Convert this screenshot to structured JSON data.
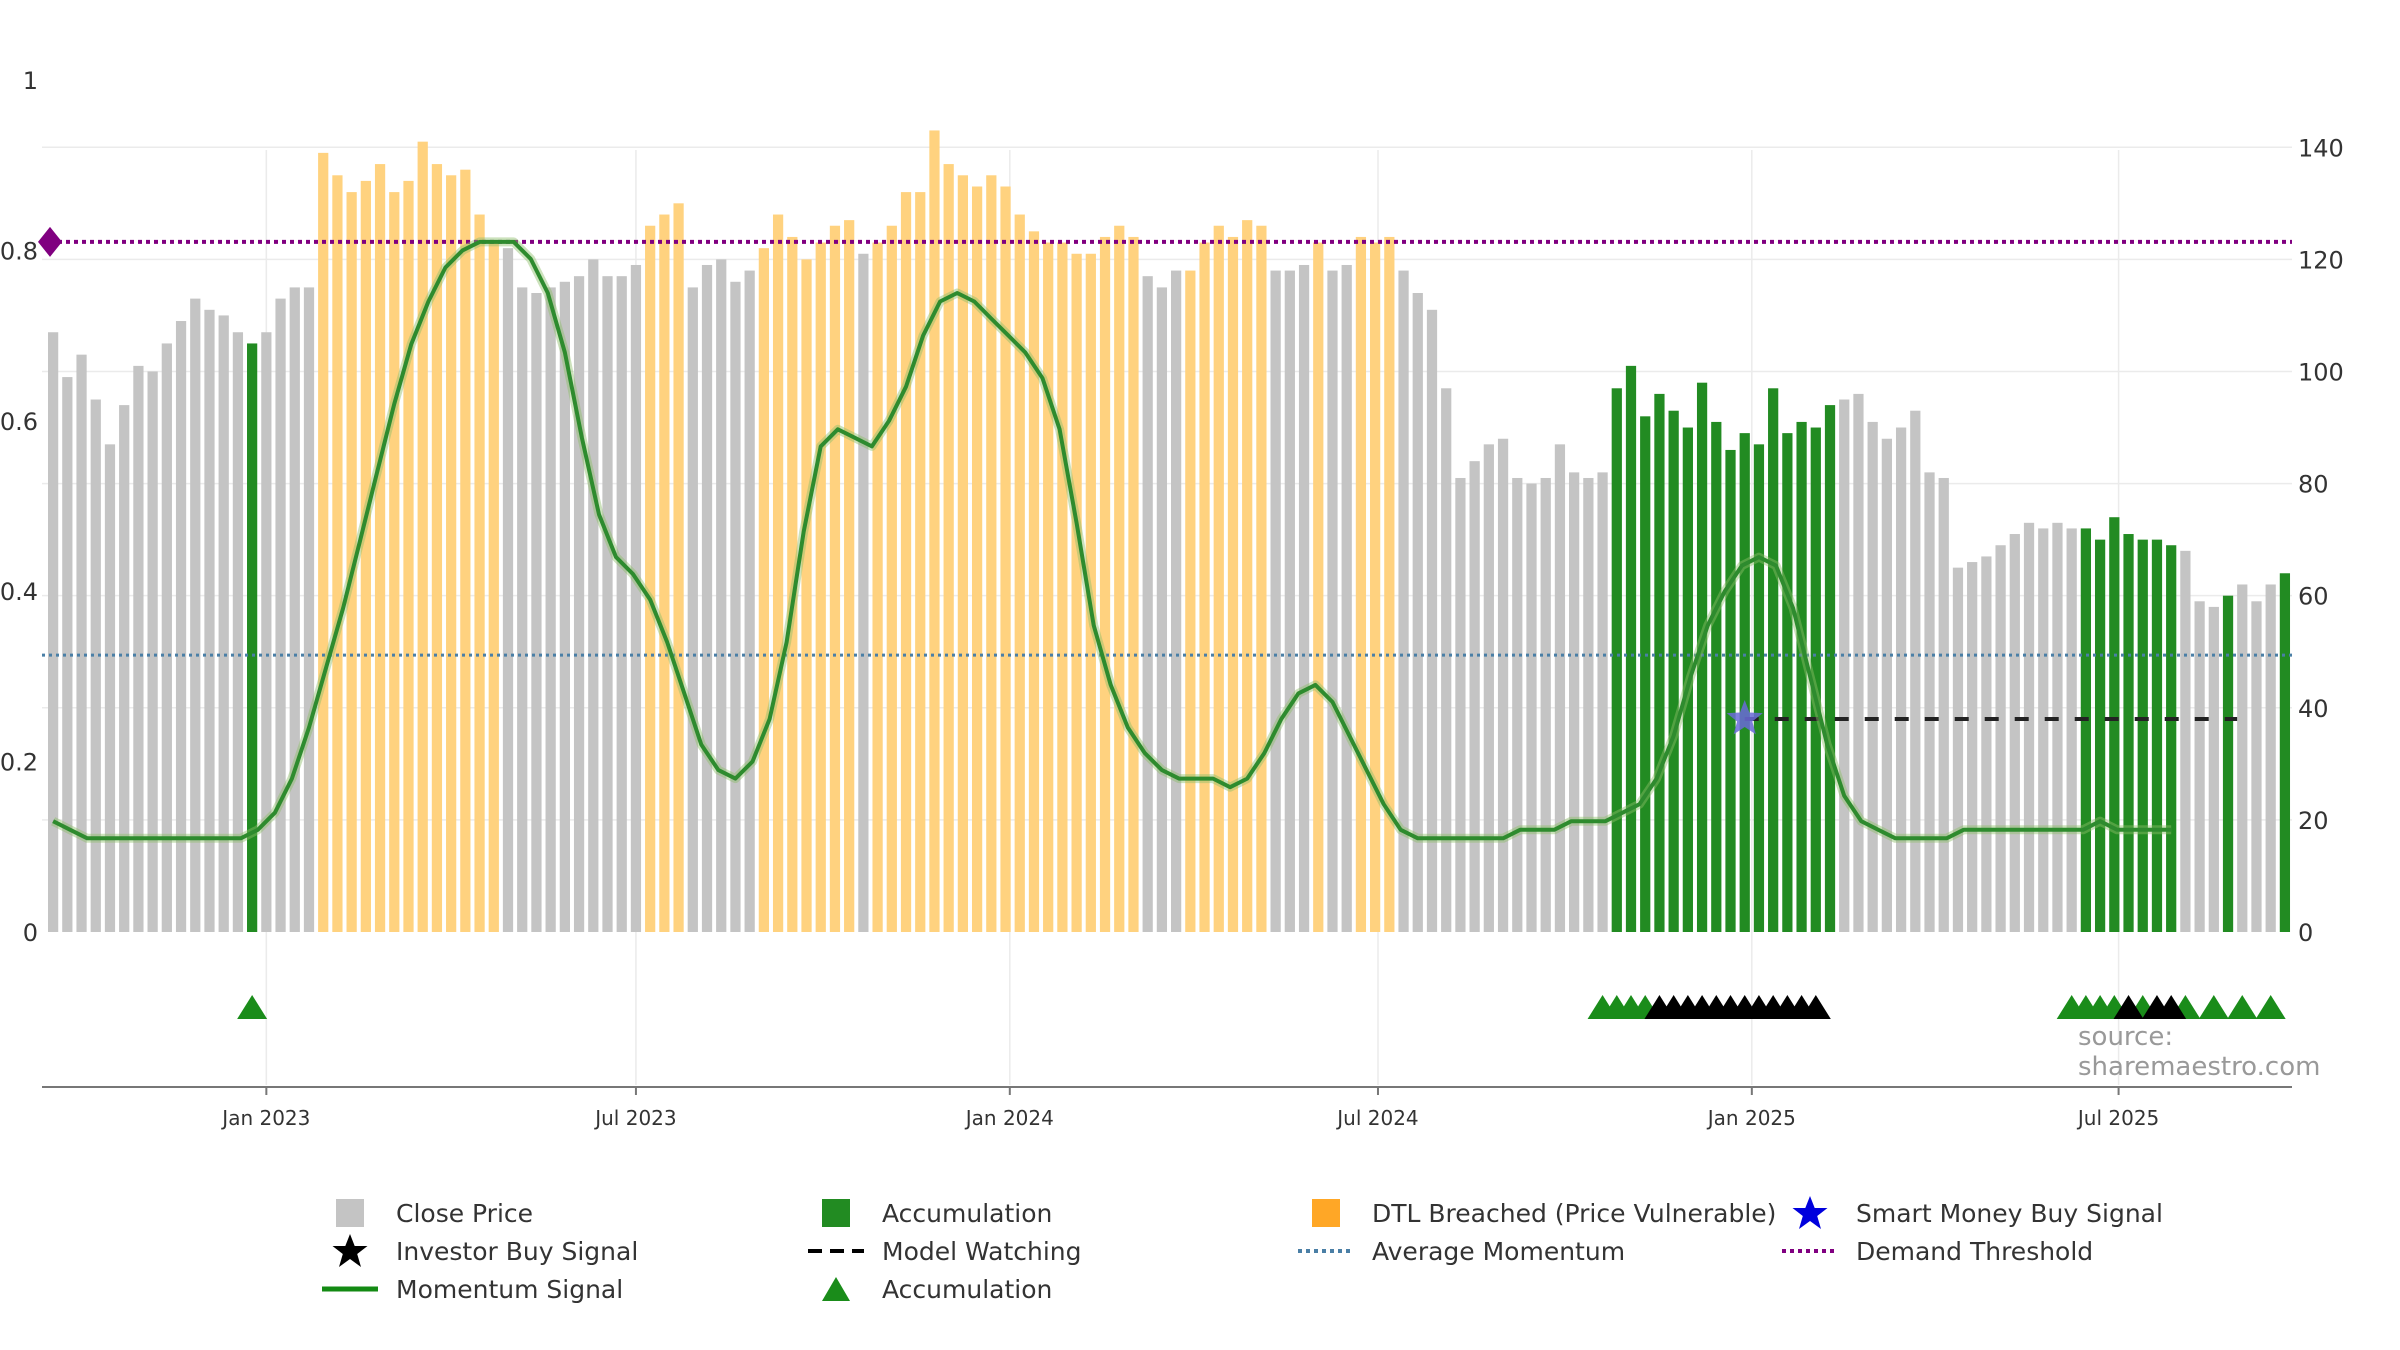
{
  "chart_data": {
    "type": "bar",
    "title": "",
    "xlabel": "",
    "ylabel": "",
    "left_axis": {
      "ylim": [
        0,
        1
      ],
      "ticks": [
        0,
        0.2,
        0.4,
        0.6,
        0.8,
        1
      ],
      "tick_labels": [
        "0",
        "0.2",
        "0.4",
        "0.6",
        "0.8",
        "1"
      ]
    },
    "right_axis": {
      "ylim": [
        0,
        152
      ],
      "ticks": [
        0,
        20,
        40,
        60,
        80,
        100,
        120,
        140
      ],
      "tick_labels": [
        "0",
        "20",
        "40",
        "60",
        "80",
        "100",
        "120",
        "140"
      ]
    },
    "x_ticks": [
      {
        "label": "Jan 2023",
        "week_index": 15
      },
      {
        "label": "Jul 2023",
        "week_index": 41
      },
      {
        "label": "Jan 2024",
        "week_index": 67.3
      },
      {
        "label": "Jul 2024",
        "week_index": 93.2
      },
      {
        "label": "Jan 2025",
        "week_index": 119.5
      },
      {
        "label": "Jul 2025",
        "week_index": 145.3
      }
    ],
    "close_price": [
      107,
      99,
      103,
      95,
      87,
      94,
      101,
      100,
      105,
      109,
      113,
      111,
      110,
      107,
      105,
      107,
      113,
      115,
      115,
      139,
      135,
      132,
      134,
      137,
      132,
      134,
      141,
      137,
      135,
      136,
      128,
      123,
      122,
      115,
      114,
      115,
      116,
      117,
      120,
      117,
      117,
      119,
      126,
      128,
      130,
      115,
      119,
      120,
      116,
      118,
      122,
      128,
      124,
      120,
      123,
      126,
      127,
      121,
      123,
      126,
      132,
      132,
      143,
      137,
      135,
      133,
      135,
      133,
      128,
      125,
      123,
      123,
      121,
      121,
      124,
      126,
      124,
      117,
      115,
      118,
      118,
      123,
      126,
      124,
      127,
      126,
      118,
      118,
      119,
      123,
      118,
      119,
      124,
      123,
      124,
      118,
      114,
      111,
      97,
      81,
      84,
      87,
      88,
      81,
      80,
      81,
      87,
      82,
      81,
      82,
      97,
      101,
      92,
      96,
      93,
      90,
      98,
      91,
      86,
      89,
      87,
      97,
      89,
      91,
      90,
      94,
      95,
      96,
      91,
      88,
      90,
      93,
      82,
      81,
      65,
      66,
      67,
      69,
      71,
      73,
      72,
      73,
      72,
      72,
      70,
      74,
      71,
      70,
      70,
      69,
      68,
      59,
      58,
      60,
      62,
      59,
      62,
      64
    ],
    "bar_state": [
      "c",
      "c",
      "c",
      "c",
      "c",
      "c",
      "c",
      "c",
      "c",
      "c",
      "c",
      "c",
      "c",
      "c",
      "a",
      "c",
      "c",
      "c",
      "c",
      "d",
      "d",
      "d",
      "d",
      "d",
      "d",
      "d",
      "d",
      "d",
      "d",
      "d",
      "d",
      "d",
      "c",
      "c",
      "c",
      "c",
      "c",
      "c",
      "c",
      "c",
      "c",
      "c",
      "d",
      "d",
      "d",
      "c",
      "c",
      "c",
      "c",
      "c",
      "d",
      "d",
      "d",
      "d",
      "d",
      "d",
      "d",
      "c",
      "d",
      "d",
      "d",
      "d",
      "d",
      "d",
      "d",
      "d",
      "d",
      "d",
      "d",
      "d",
      "d",
      "d",
      "d",
      "d",
      "d",
      "d",
      "d",
      "c",
      "c",
      "c",
      "d",
      "d",
      "d",
      "d",
      "d",
      "d",
      "c",
      "c",
      "c",
      "d",
      "c",
      "c",
      "d",
      "d",
      "d",
      "c",
      "c",
      "c",
      "c",
      "c",
      "c",
      "c",
      "c",
      "c",
      "c",
      "c",
      "c",
      "c",
      "c",
      "c",
      "a",
      "a",
      "a",
      "a",
      "a",
      "a",
      "a",
      "a",
      "a",
      "a",
      "a",
      "a",
      "a",
      "a",
      "a",
      "a",
      "c",
      "c",
      "c",
      "c",
      "c",
      "c",
      "c",
      "c",
      "c",
      "c",
      "c",
      "c",
      "c",
      "c",
      "c",
      "c",
      "c",
      "a",
      "a",
      "a",
      "a",
      "a",
      "a",
      "a",
      "c",
      "c",
      "c",
      "a",
      "c",
      "c",
      "c",
      "a"
    ],
    "momentum": [
      0.13,
      0.12,
      0.11,
      0.11,
      0.11,
      0.11,
      0.11,
      0.11,
      0.11,
      0.11,
      0.11,
      0.11,
      0.12,
      0.14,
      0.18,
      0.24,
      0.31,
      0.38,
      0.46,
      0.54,
      0.62,
      0.69,
      0.74,
      0.78,
      0.8,
      0.81,
      0.81,
      0.81,
      0.79,
      0.75,
      0.68,
      0.58,
      0.49,
      0.44,
      0.42,
      0.39,
      0.34,
      0.28,
      0.22,
      0.19,
      0.18,
      0.2,
      0.25,
      0.34,
      0.47,
      0.57,
      0.59,
      0.58,
      0.57,
      0.6,
      0.64,
      0.7,
      0.74,
      0.75,
      0.74,
      0.72,
      0.7,
      0.68,
      0.65,
      0.59,
      0.48,
      0.36,
      0.29,
      0.24,
      0.21,
      0.19,
      0.18,
      0.18,
      0.18,
      0.17,
      0.18,
      0.21,
      0.25,
      0.28,
      0.29,
      0.27,
      0.23,
      0.19,
      0.15,
      0.12,
      0.11,
      0.11,
      0.11,
      0.11,
      0.11,
      0.11,
      0.12,
      0.12,
      0.12,
      0.13,
      0.13,
      0.13,
      0.14,
      0.15,
      0.18,
      0.23,
      0.3,
      0.36,
      0.4,
      0.43,
      0.44,
      0.43,
      0.38,
      0.3,
      0.22,
      0.16,
      0.13,
      0.12,
      0.11,
      0.11,
      0.11,
      0.11,
      0.12,
      0.12,
      0.12,
      0.12,
      0.12,
      0.12,
      0.12,
      0.12,
      0.13,
      0.12,
      0.12,
      0.12,
      0.12
    ],
    "momentum_x": [
      0,
      1.2,
      2.4,
      3.6,
      4.8,
      6.0,
      7.2,
      8.4,
      9.6,
      10.8,
      12.0,
      13.2,
      14.4,
      15.6,
      16.8,
      18.0,
      19.2,
      20.4,
      21.6,
      22.8,
      24.0,
      25.2,
      26.4,
      27.6,
      28.8,
      30.0,
      31.2,
      32.4,
      33.6,
      34.8,
      36.0,
      37.2,
      38.4,
      39.6,
      40.8,
      42.0,
      43.2,
      44.4,
      45.6,
      46.8,
      48.0,
      49.2,
      50.4,
      51.6,
      52.8,
      54.0,
      55.2,
      56.4,
      57.6,
      58.8,
      60.0,
      61.2,
      62.4,
      63.6,
      64.8,
      66.0,
      67.2,
      68.4,
      69.6,
      70.8,
      72.0,
      73.2,
      74.4,
      75.6,
      76.8,
      78.0,
      79.2,
      80.4,
      81.6,
      82.8,
      84.0,
      85.2,
      86.4,
      87.6,
      88.8,
      90.0,
      91.2,
      92.4,
      93.6,
      94.8,
      96.0,
      97.2,
      98.4,
      99.6,
      100.8,
      102.0,
      103.2,
      104.4,
      105.6,
      106.8,
      108.0,
      109.2,
      110.4,
      111.6,
      112.8,
      114.0,
      115.2,
      116.4,
      117.6,
      118.8,
      120.0,
      121.2,
      122.4,
      123.6,
      124.8,
      126.0,
      127.2,
      128.4,
      129.6,
      130.8,
      132.0,
      133.2,
      134.4,
      135.6,
      136.8,
      138.0,
      139.2,
      140.4,
      141.6,
      142.8,
      144.0,
      145.2,
      146.4,
      147.6,
      149.0
    ],
    "average_momentum": 0.325,
    "demand_threshold": 0.81,
    "model_watching": {
      "value": 0.25,
      "from_week": 119,
      "to_week": 154
    },
    "smart_money_buy_signal": {
      "week": 119,
      "value": 0.25
    },
    "accumulation_triangles": [
      14,
      109,
      110,
      111,
      112,
      142,
      143,
      144,
      145,
      147,
      150,
      152,
      154,
      156
    ],
    "investor_buy_signals": [
      113,
      114,
      115,
      116,
      117,
      118,
      119,
      120,
      121,
      122,
      123,
      124,
      146,
      148,
      149
    ],
    "legend_position": "bottom"
  },
  "legend": {
    "close_price": "Close Price",
    "accumulation": "Accumulation",
    "dtl_breached": "DTL Breached (Price Vulnerable)",
    "smart_money": "Smart Money Buy Signal",
    "investor_buy": "Investor Buy Signal",
    "model_watching": "Model Watching",
    "average_momentum": "Average Momentum",
    "demand_threshold": "Demand Threshold",
    "momentum_signal": "Momentum Signal",
    "accumulation_triangle": "Accumulation"
  },
  "source": "source: sharemaestro.com",
  "colors": {
    "close_price": "#c4c4c4",
    "accumulation": "#228b22",
    "dtl_breached": "#ffd27f",
    "momentum": "#2e8b2e",
    "average_momentum": "#4a7fa6",
    "demand_threshold": "#800080",
    "smart_money": "#0000dd",
    "investor_buy": "#000000",
    "triangle": "#1a8c1a"
  }
}
